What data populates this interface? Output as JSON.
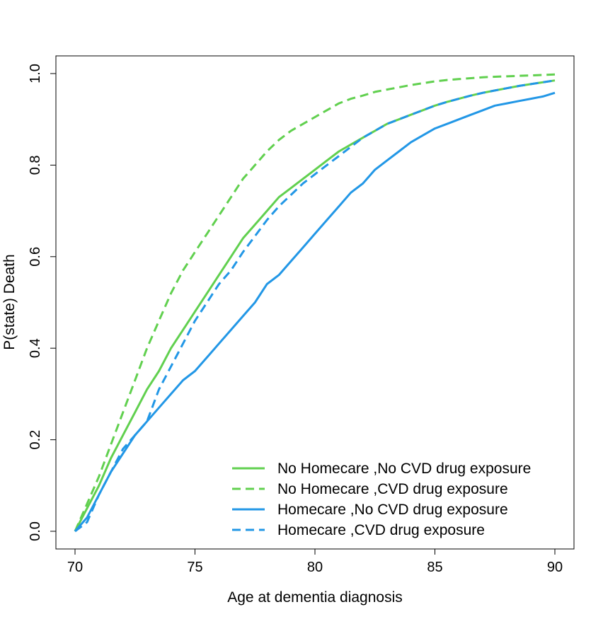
{
  "chart_data": {
    "type": "line",
    "title": "",
    "xlabel": "Age at dementia diagnosis",
    "ylabel": "P(state) Death",
    "xlim": [
      70,
      90
    ],
    "ylim": [
      0,
      1
    ],
    "x_ticks": [
      "70",
      "75",
      "80",
      "85",
      "90"
    ],
    "y_ticks": [
      "0.0",
      "0.2",
      "0.4",
      "0.6",
      "0.8",
      "1.0"
    ],
    "legend_position": "bottom-right",
    "series": [
      {
        "name": "No Homecare ,No CVD drug exposure",
        "color": "#61d04f",
        "dash": "solid",
        "x": [
          70,
          70.5,
          71,
          71.5,
          72,
          72.5,
          73,
          73.5,
          74,
          74.5,
          75,
          75.5,
          76,
          76.5,
          77,
          77.5,
          78,
          78.5,
          79,
          79.5,
          80,
          80.5,
          81,
          81.5,
          82,
          82.5,
          83,
          83.5,
          84,
          84.5,
          85,
          85.5,
          86,
          86.5,
          87,
          87.5,
          88,
          88.5,
          89,
          89.5,
          90
        ],
        "y": [
          0.0,
          0.05,
          0.1,
          0.16,
          0.21,
          0.26,
          0.31,
          0.35,
          0.4,
          0.44,
          0.48,
          0.52,
          0.56,
          0.6,
          0.64,
          0.67,
          0.7,
          0.73,
          0.75,
          0.77,
          0.79,
          0.81,
          0.83,
          0.845,
          0.86,
          0.875,
          0.89,
          0.9,
          0.91,
          0.92,
          0.93,
          0.938,
          0.945,
          0.952,
          0.958,
          0.963,
          0.968,
          0.973,
          0.977,
          0.981,
          0.985
        ]
      },
      {
        "name": "No Homecare ,CVD drug exposure",
        "color": "#61d04f",
        "dash": "dashed",
        "x": [
          70,
          70.5,
          71,
          71.5,
          72,
          72.5,
          73,
          73.5,
          74,
          74.5,
          75,
          75.5,
          76,
          76.5,
          77,
          77.5,
          78,
          78.5,
          79,
          79.5,
          80,
          80.5,
          81,
          81.5,
          82,
          82.5,
          83,
          83.5,
          84,
          84.5,
          85,
          85.5,
          86,
          86.5,
          87,
          87.5,
          88,
          88.5,
          89,
          89.5,
          90
        ],
        "y": [
          0.0,
          0.06,
          0.12,
          0.19,
          0.26,
          0.33,
          0.4,
          0.46,
          0.52,
          0.57,
          0.61,
          0.65,
          0.69,
          0.73,
          0.77,
          0.8,
          0.83,
          0.855,
          0.875,
          0.89,
          0.905,
          0.92,
          0.935,
          0.945,
          0.952,
          0.96,
          0.965,
          0.97,
          0.975,
          0.979,
          0.983,
          0.986,
          0.988,
          0.99,
          0.992,
          0.993,
          0.994,
          0.995,
          0.996,
          0.997,
          0.998
        ]
      },
      {
        "name": "Homecare ,No CVD drug exposure",
        "color": "#2297e6",
        "dash": "solid",
        "x": [
          70,
          70.5,
          71,
          71.5,
          72,
          72.5,
          73,
          73.5,
          74,
          74.5,
          75,
          75.5,
          76,
          76.5,
          77,
          77.5,
          78,
          78.5,
          79,
          79.5,
          80,
          80.5,
          81,
          81.5,
          82,
          82.5,
          83,
          83.5,
          84,
          84.5,
          85,
          85.5,
          86,
          86.5,
          87,
          87.5,
          88,
          88.5,
          89,
          89.5,
          90
        ],
        "y": [
          0.0,
          0.03,
          0.08,
          0.13,
          0.17,
          0.21,
          0.24,
          0.27,
          0.3,
          0.33,
          0.35,
          0.38,
          0.41,
          0.44,
          0.47,
          0.5,
          0.54,
          0.56,
          0.59,
          0.62,
          0.65,
          0.68,
          0.71,
          0.74,
          0.76,
          0.79,
          0.81,
          0.83,
          0.85,
          0.865,
          0.88,
          0.89,
          0.9,
          0.91,
          0.92,
          0.93,
          0.935,
          0.94,
          0.945,
          0.95,
          0.958
        ]
      },
      {
        "name": "Homecare ,CVD drug exposure",
        "color": "#2297e6",
        "dash": "dashed",
        "x": [
          70,
          70.5,
          71,
          71.5,
          72,
          72.5,
          73,
          73.5,
          74,
          74.5,
          75,
          75.5,
          76,
          76.5,
          77,
          77.5,
          78,
          78.5,
          79,
          79.5,
          80,
          80.5,
          81,
          81.5,
          82,
          82.5,
          83,
          83.5,
          84,
          84.5,
          85,
          85.5,
          86,
          86.5,
          87,
          87.5,
          88,
          88.5,
          89,
          89.5,
          90
        ],
        "y": [
          0.0,
          0.02,
          0.08,
          0.13,
          0.18,
          0.21,
          0.24,
          0.31,
          0.36,
          0.41,
          0.46,
          0.5,
          0.54,
          0.57,
          0.61,
          0.645,
          0.68,
          0.71,
          0.735,
          0.76,
          0.78,
          0.8,
          0.82,
          0.84,
          0.86,
          0.875,
          0.89,
          0.9,
          0.91,
          0.92,
          0.93,
          0.938,
          0.945,
          0.952,
          0.958,
          0.963,
          0.968,
          0.973,
          0.977,
          0.981,
          0.985
        ]
      }
    ]
  }
}
